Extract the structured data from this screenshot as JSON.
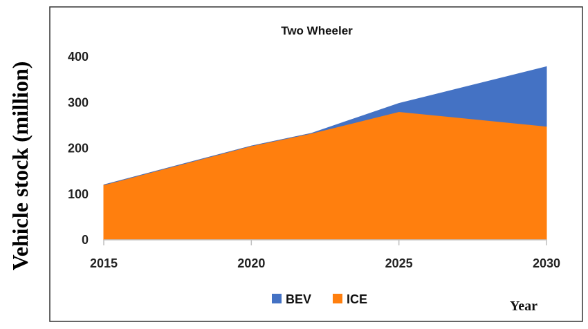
{
  "chart_data": {
    "type": "area",
    "stacked": true,
    "title": "Two Wheeler",
    "xlabel": "Year",
    "ylabel": "Vehicle stock (million)",
    "x": [
      2015,
      2020,
      2022,
      2025,
      2030
    ],
    "x_ticks": [
      "2015",
      "2020",
      "2025",
      "2030"
    ],
    "y_ticks": [
      "0",
      "100",
      "200",
      "300",
      "400"
    ],
    "ylim": [
      0,
      400
    ],
    "xlim": [
      2015,
      2030
    ],
    "grid": false,
    "legend_position": "bottom",
    "series": [
      {
        "name": "ICE",
        "color": "#ff7f0e",
        "values": [
          120,
          205,
          232,
          280,
          248
        ]
      },
      {
        "name": "BEV",
        "color": "#4472c4",
        "values": [
          0,
          0,
          0,
          18,
          130
        ]
      }
    ]
  }
}
